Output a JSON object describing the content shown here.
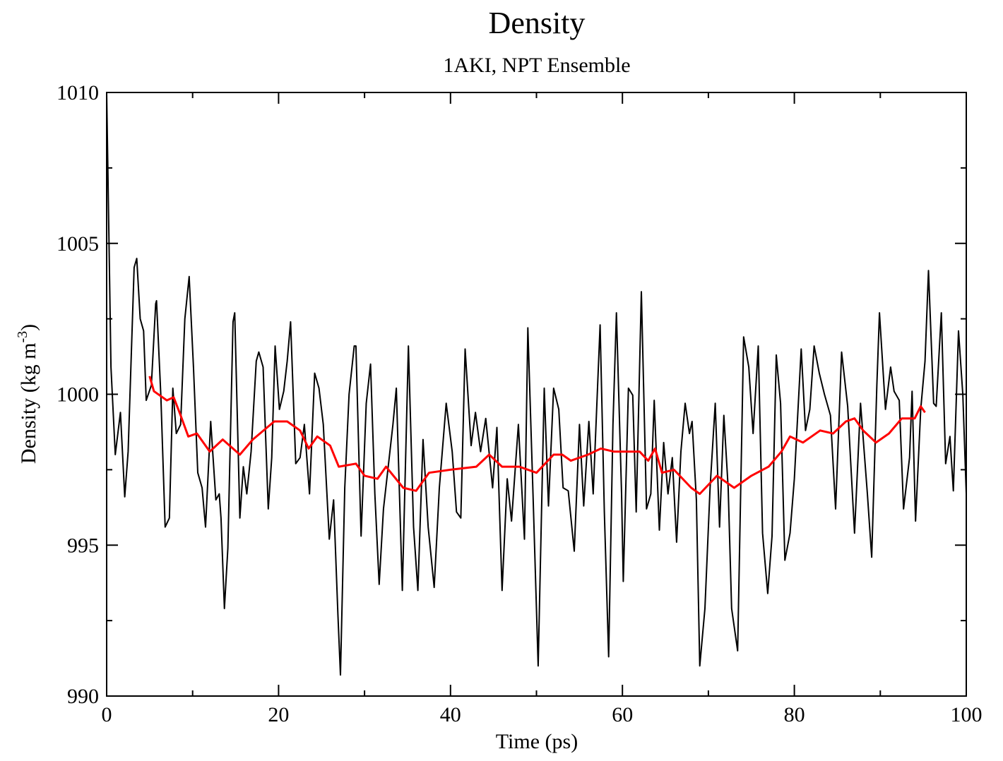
{
  "chart_data": {
    "type": "line",
    "title": "Density",
    "subtitle": "1AKI, NPT Ensemble",
    "xlabel": "Time (ps)",
    "ylabel": {
      "text": "Density (kg m",
      "superscript": "-3",
      "suffix": ")"
    },
    "xlim": [
      0,
      100
    ],
    "xticks": [
      0,
      20,
      40,
      60,
      80,
      100
    ],
    "xminor_ticks": [
      10,
      30,
      50,
      70,
      90
    ],
    "ylim": [
      990,
      1010
    ],
    "yticks": [
      990,
      995,
      1000,
      1005,
      1010
    ],
    "yminor_ticks": [
      992.5,
      997.5,
      1002.5,
      1007.5
    ],
    "grid": false,
    "series": [
      {
        "color": "#000000",
        "x": [
          0,
          0.5,
          1.0,
          1.6,
          2.1,
          2.5,
          3.2,
          3.5,
          3.9,
          4.3,
          4.6,
          5.2,
          5.7,
          5.8,
          6.3,
          6.8,
          7.3,
          7.7,
          8.1,
          8.6,
          9.1,
          9.6,
          10.1,
          10.6,
          11.1,
          11.5,
          12.1,
          12.7,
          13.1,
          13.3,
          13.7,
          14.1,
          14.7,
          14.9,
          15.5,
          15.9,
          16.3,
          16.8,
          17.4,
          17.7,
          18.2,
          18.8,
          19.2,
          19.6,
          20.1,
          20.6,
          21.0,
          21.4,
          22.0,
          22.5,
          23.0,
          23.6,
          24.2,
          24.7,
          25.2,
          25.9,
          26.4,
          26.9,
          27.2,
          27.7,
          28.2,
          28.8,
          29.0,
          29.6,
          30.2,
          30.7,
          31.2,
          31.7,
          32.2,
          32.6,
          33.3,
          33.7,
          34.4,
          35.1,
          35.7,
          36.2,
          36.8,
          37.4,
          38.1,
          38.7,
          39.5,
          40.2,
          40.7,
          41.2,
          41.7,
          42.4,
          42.9,
          43.5,
          44.1,
          44.9,
          45.4,
          46.0,
          46.6,
          47.1,
          47.9,
          48.6,
          49.0,
          49.6,
          50.2,
          50.9,
          51.4,
          52.0,
          52.6,
          53.1,
          53.7,
          54.4,
          55.0,
          55.5,
          56.1,
          56.6,
          57.4,
          57.9,
          58.4,
          58.9,
          59.3,
          59.9,
          60.1,
          60.7,
          61.2,
          61.6,
          62.2,
          62.8,
          63.3,
          63.7,
          64.3,
          64.8,
          65.3,
          65.8,
          66.3,
          66.8,
          67.3,
          67.8,
          68.1,
          68.6,
          69.0,
          69.6,
          70.2,
          70.8,
          71.3,
          71.8,
          72.3,
          72.7,
          73.4,
          74.1,
          74.7,
          75.2,
          75.8,
          76.3,
          76.9,
          77.4,
          77.9,
          78.4,
          78.9,
          79.5,
          80.0,
          80.8,
          81.3,
          81.8,
          82.3,
          82.9,
          83.5,
          84.2,
          84.8,
          85.5,
          86.2,
          87.0,
          87.7,
          88.5,
          89.0,
          89.6,
          89.9,
          90.6,
          91.2,
          91.6,
          92.2,
          92.7,
          93.4,
          93.7,
          94.1,
          94.7,
          95.2,
          95.6,
          96.2,
          96.5,
          97.1,
          97.6,
          98.1,
          98.5,
          99.1,
          99.6,
          100
        ],
        "values": [
          1010,
          1000.9,
          998.0,
          999.4,
          996.6,
          998.1,
          1004.2,
          1004.5,
          1002.5,
          1002.1,
          999.8,
          1000.3,
          1003.0,
          1003.1,
          999.96,
          995.6,
          995.9,
          1000.2,
          998.7,
          999.0,
          1002.5,
          1003.9,
          1000.9,
          997.4,
          996.9,
          995.6,
          999.1,
          996.5,
          996.7,
          995.9,
          992.9,
          994.9,
          1002.4,
          1002.7,
          995.9,
          997.6,
          996.7,
          998.1,
          1001.1,
          1001.4,
          1000.9,
          996.2,
          997.9,
          1001.6,
          999.5,
          1000.1,
          1001.1,
          1002.4,
          997.7,
          997.9,
          999.0,
          996.7,
          1000.7,
          1000.2,
          999.0,
          995.2,
          996.5,
          992.7,
          990.7,
          996.9,
          1000.0,
          1001.6,
          1001.6,
          995.3,
          999.7,
          1001.0,
          996.7,
          993.7,
          996.2,
          997.2,
          999.0,
          1000.2,
          993.5,
          1001.6,
          995.6,
          993.5,
          998.5,
          995.6,
          993.6,
          996.9,
          999.7,
          998.1,
          996.1,
          995.9,
          1001.5,
          998.3,
          999.4,
          998.1,
          999.2,
          996.9,
          998.9,
          993.5,
          997.2,
          995.8,
          999.0,
          995.2,
          1002.2,
          996.7,
          991.0,
          1000.2,
          996.3,
          1000.2,
          999.5,
          996.9,
          996.8,
          994.8,
          999.0,
          996.3,
          999.1,
          996.7,
          1002.3,
          996.1,
          991.3,
          999.0,
          1002.7,
          996.7,
          993.8,
          1000.2,
          999.97,
          996.1,
          1003.4,
          996.2,
          996.7,
          999.8,
          995.5,
          998.4,
          996.7,
          997.9,
          995.1,
          998.1,
          999.7,
          998.7,
          999.1,
          996.5,
          991.0,
          992.9,
          996.9,
          999.7,
          995.6,
          999.3,
          996.9,
          992.9,
          991.5,
          1001.9,
          1000.9,
          998.7,
          1001.6,
          995.4,
          993.4,
          995.3,
          1001.3,
          999.7,
          994.5,
          995.4,
          997.2,
          1001.5,
          998.8,
          999.5,
          1001.6,
          1000.7,
          1000.0,
          999.3,
          996.2,
          1001.4,
          999.6,
          995.4,
          999.7,
          996.7,
          994.6,
          1000.3,
          1002.7,
          999.5,
          1000.9,
          1000.1,
          999.8,
          996.2,
          997.9,
          1000.1,
          995.8,
          999.5,
          1001.1,
          1004.1,
          999.7,
          999.6,
          1002.7,
          997.7,
          998.6,
          996.8,
          1002.1,
          1000.0,
          996.7
        ]
      },
      {
        "color": "#ff0000",
        "x": [
          5,
          5.5,
          7,
          7.8,
          8.6,
          9.5,
          10.5,
          12,
          13.5,
          15.5,
          17,
          19.5,
          21,
          22.5,
          23.5,
          24.5,
          26,
          27,
          29,
          30,
          31.5,
          32.5,
          34.5,
          36,
          37.5,
          40,
          43,
          44.5,
          46,
          48,
          50,
          52,
          53,
          54,
          56,
          57.5,
          59,
          62,
          63,
          63.8,
          64.6,
          66,
          68,
          69,
          71,
          73,
          75,
          77,
          78.5,
          79.5,
          81,
          83,
          84.5,
          86,
          87,
          88,
          89.5,
          91,
          92.5,
          94,
          94.7,
          95.2
        ],
        "values": [
          1000.6,
          1000.1,
          999.8,
          999.9,
          999.3,
          998.6,
          998.7,
          998.1,
          998.5,
          998.0,
          998.5,
          999.1,
          999.1,
          998.8,
          998.2,
          998.6,
          998.3,
          997.6,
          997.7,
          997.3,
          997.2,
          997.6,
          996.9,
          996.8,
          997.4,
          997.5,
          997.6,
          998.0,
          997.6,
          997.6,
          997.4,
          998.0,
          998.0,
          997.8,
          998.0,
          998.2,
          998.1,
          998.1,
          997.8,
          998.2,
          997.4,
          997.5,
          996.9,
          996.7,
          997.3,
          996.9,
          997.3,
          997.6,
          998.1,
          998.6,
          998.4,
          998.8,
          998.7,
          999.1,
          999.2,
          998.8,
          998.4,
          998.7,
          999.2,
          999.2,
          999.6,
          999.4
        ]
      }
    ]
  }
}
